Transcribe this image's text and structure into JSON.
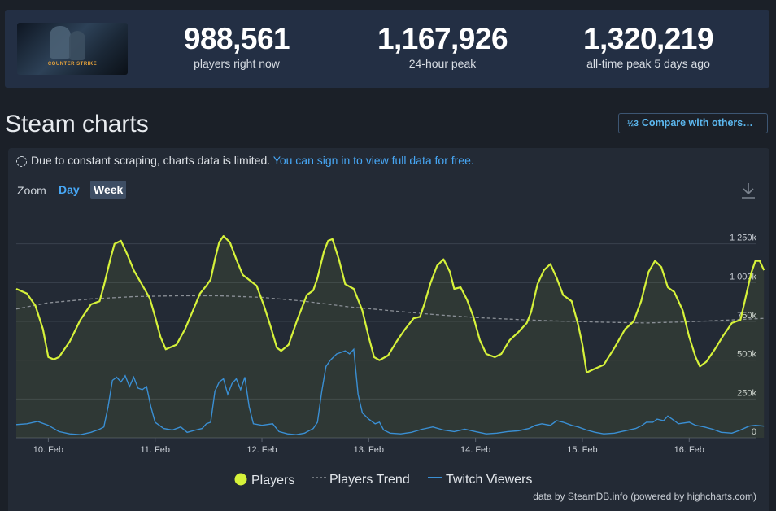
{
  "stats": [
    {
      "value": "988,561",
      "label": "players right now"
    },
    {
      "value": "1,167,926",
      "label": "24-hour peak"
    },
    {
      "value": "1,320,219",
      "label": "all-time peak 5 days ago"
    }
  ],
  "game_logo_text": "COUNTER STRIKE",
  "page_title": "Steam charts",
  "compare_button": {
    "fraction": "½3",
    "label": "Compare with others…"
  },
  "notice": {
    "text": "Due to constant scraping, charts data is limited.",
    "link": "You can sign in to view full data for free."
  },
  "zoom": {
    "label": "Zoom",
    "options": [
      "Day",
      "Week"
    ],
    "selected": "Week"
  },
  "download_icon": "download-icon",
  "legend": {
    "players": "Players",
    "trend": "Players Trend",
    "twitch": "Twitch Viewers"
  },
  "credit": "data by SteamDB.info (powered by highcharts.com)",
  "colors": {
    "players": "#d6f23a",
    "trend": "#8a8f96",
    "twitch": "#3a8fd4",
    "accent": "#47a7f5"
  },
  "chart_data": {
    "type": "line",
    "x_unit": "days since 10. Feb 00:00",
    "x_range": [
      -0.3,
      6.63
    ],
    "x_ticks": [
      {
        "label": "10. Feb",
        "x": 0
      },
      {
        "label": "11. Feb",
        "x": 1
      },
      {
        "label": "12. Feb",
        "x": 2
      },
      {
        "label": "13. Feb",
        "x": 3
      },
      {
        "label": "14. Feb",
        "x": 4
      },
      {
        "label": "15. Feb",
        "x": 5
      },
      {
        "label": "16. Feb",
        "x": 6
      }
    ],
    "y_range": [
      0,
      1500000
    ],
    "y_ticks": [
      {
        "label": "0",
        "v": 0
      },
      {
        "label": "250k",
        "v": 250000
      },
      {
        "label": "500k",
        "v": 500000
      },
      {
        "label": "750k",
        "v": 750000
      },
      {
        "label": "1 000k",
        "v": 1000000
      },
      {
        "label": "1 250k",
        "v": 1250000
      }
    ],
    "series": [
      {
        "name": "Players",
        "points": [
          [
            -0.3,
            960000
          ],
          [
            -0.2,
            930000
          ],
          [
            -0.12,
            850000
          ],
          [
            -0.05,
            700000
          ],
          [
            0.0,
            520000
          ],
          [
            0.05,
            505000
          ],
          [
            0.1,
            520000
          ],
          [
            0.2,
            620000
          ],
          [
            0.3,
            760000
          ],
          [
            0.4,
            860000
          ],
          [
            0.48,
            880000
          ],
          [
            0.52,
            980000
          ],
          [
            0.58,
            1150000
          ],
          [
            0.62,
            1250000
          ],
          [
            0.68,
            1270000
          ],
          [
            0.74,
            1180000
          ],
          [
            0.8,
            1080000
          ],
          [
            0.9,
            960000
          ],
          [
            0.95,
            900000
          ],
          [
            1.0,
            780000
          ],
          [
            1.05,
            650000
          ],
          [
            1.1,
            570000
          ],
          [
            1.2,
            600000
          ],
          [
            1.28,
            700000
          ],
          [
            1.36,
            830000
          ],
          [
            1.42,
            930000
          ],
          [
            1.48,
            980000
          ],
          [
            1.52,
            1020000
          ],
          [
            1.56,
            1150000
          ],
          [
            1.6,
            1260000
          ],
          [
            1.64,
            1300000
          ],
          [
            1.7,
            1260000
          ],
          [
            1.76,
            1150000
          ],
          [
            1.82,
            1050000
          ],
          [
            1.95,
            980000
          ],
          [
            2.02,
            850000
          ],
          [
            2.08,
            720000
          ],
          [
            2.14,
            580000
          ],
          [
            2.18,
            560000
          ],
          [
            2.25,
            600000
          ],
          [
            2.33,
            760000
          ],
          [
            2.42,
            920000
          ],
          [
            2.48,
            950000
          ],
          [
            2.52,
            1030000
          ],
          [
            2.58,
            1200000
          ],
          [
            2.62,
            1270000
          ],
          [
            2.66,
            1280000
          ],
          [
            2.72,
            1150000
          ],
          [
            2.78,
            990000
          ],
          [
            2.86,
            960000
          ],
          [
            2.94,
            820000
          ],
          [
            3.0,
            650000
          ],
          [
            3.05,
            520000
          ],
          [
            3.1,
            500000
          ],
          [
            3.18,
            530000
          ],
          [
            3.26,
            620000
          ],
          [
            3.34,
            700000
          ],
          [
            3.42,
            770000
          ],
          [
            3.48,
            780000
          ],
          [
            3.52,
            860000
          ],
          [
            3.58,
            1000000
          ],
          [
            3.64,
            1110000
          ],
          [
            3.7,
            1150000
          ],
          [
            3.76,
            1070000
          ],
          [
            3.8,
            960000
          ],
          [
            3.86,
            970000
          ],
          [
            3.92,
            890000
          ],
          [
            3.98,
            780000
          ],
          [
            4.04,
            630000
          ],
          [
            4.1,
            540000
          ],
          [
            4.18,
            520000
          ],
          [
            4.24,
            540000
          ],
          [
            4.32,
            630000
          ],
          [
            4.4,
            680000
          ],
          [
            4.48,
            740000
          ],
          [
            4.52,
            810000
          ],
          [
            4.58,
            990000
          ],
          [
            4.64,
            1080000
          ],
          [
            4.7,
            1120000
          ],
          [
            4.76,
            1030000
          ],
          [
            4.82,
            920000
          ],
          [
            4.9,
            880000
          ],
          [
            4.96,
            730000
          ],
          [
            5.0,
            600000
          ],
          [
            5.04,
            420000
          ],
          [
            5.1,
            440000
          ],
          [
            5.2,
            470000
          ],
          [
            5.3,
            580000
          ],
          [
            5.4,
            700000
          ],
          [
            5.48,
            750000
          ],
          [
            5.55,
            880000
          ],
          [
            5.62,
            1070000
          ],
          [
            5.68,
            1140000
          ],
          [
            5.74,
            1100000
          ],
          [
            5.8,
            970000
          ],
          [
            5.86,
            940000
          ],
          [
            5.94,
            820000
          ],
          [
            6.0,
            650000
          ],
          [
            6.06,
            520000
          ],
          [
            6.1,
            460000
          ],
          [
            6.16,
            490000
          ],
          [
            6.24,
            570000
          ],
          [
            6.32,
            660000
          ],
          [
            6.4,
            740000
          ],
          [
            6.48,
            760000
          ],
          [
            6.52,
            880000
          ],
          [
            6.58,
            1060000
          ],
          [
            6.62,
            1140000
          ],
          [
            6.66,
            1140000
          ],
          [
            6.7,
            1080000
          ]
        ]
      },
      {
        "name": "Players Trend",
        "dashed": true,
        "points": [
          [
            -0.3,
            830000
          ],
          [
            0.0,
            870000
          ],
          [
            0.4,
            895000
          ],
          [
            0.8,
            910000
          ],
          [
            1.2,
            915000
          ],
          [
            1.6,
            915000
          ],
          [
            2.0,
            905000
          ],
          [
            2.4,
            880000
          ],
          [
            2.8,
            845000
          ],
          [
            3.2,
            820000
          ],
          [
            3.6,
            795000
          ],
          [
            4.0,
            775000
          ],
          [
            4.4,
            762000
          ],
          [
            4.8,
            752000
          ],
          [
            5.2,
            745000
          ],
          [
            5.6,
            740000
          ],
          [
            6.0,
            748000
          ],
          [
            6.4,
            760000
          ],
          [
            6.7,
            770000
          ]
        ]
      },
      {
        "name": "Twitch Viewers",
        "points": [
          [
            -0.3,
            85000
          ],
          [
            -0.2,
            90000
          ],
          [
            -0.1,
            105000
          ],
          [
            0.0,
            80000
          ],
          [
            0.1,
            40000
          ],
          [
            0.2,
            25000
          ],
          [
            0.3,
            20000
          ],
          [
            0.4,
            35000
          ],
          [
            0.48,
            55000
          ],
          [
            0.52,
            70000
          ],
          [
            0.56,
            200000
          ],
          [
            0.6,
            370000
          ],
          [
            0.64,
            390000
          ],
          [
            0.68,
            360000
          ],
          [
            0.72,
            400000
          ],
          [
            0.76,
            330000
          ],
          [
            0.8,
            390000
          ],
          [
            0.84,
            320000
          ],
          [
            0.88,
            310000
          ],
          [
            0.92,
            330000
          ],
          [
            0.96,
            200000
          ],
          [
            1.0,
            100000
          ],
          [
            1.08,
            60000
          ],
          [
            1.16,
            50000
          ],
          [
            1.24,
            70000
          ],
          [
            1.3,
            35000
          ],
          [
            1.38,
            50000
          ],
          [
            1.44,
            60000
          ],
          [
            1.48,
            90000
          ],
          [
            1.52,
            100000
          ],
          [
            1.56,
            300000
          ],
          [
            1.6,
            360000
          ],
          [
            1.64,
            380000
          ],
          [
            1.68,
            280000
          ],
          [
            1.72,
            350000
          ],
          [
            1.76,
            380000
          ],
          [
            1.8,
            310000
          ],
          [
            1.84,
            390000
          ],
          [
            1.88,
            200000
          ],
          [
            1.92,
            90000
          ],
          [
            2.0,
            80000
          ],
          [
            2.1,
            90000
          ],
          [
            2.16,
            40000
          ],
          [
            2.24,
            25000
          ],
          [
            2.32,
            20000
          ],
          [
            2.4,
            30000
          ],
          [
            2.48,
            60000
          ],
          [
            2.52,
            100000
          ],
          [
            2.56,
            300000
          ],
          [
            2.6,
            460000
          ],
          [
            2.64,
            500000
          ],
          [
            2.7,
            540000
          ],
          [
            2.74,
            550000
          ],
          [
            2.78,
            560000
          ],
          [
            2.82,
            540000
          ],
          [
            2.86,
            570000
          ],
          [
            2.9,
            280000
          ],
          [
            2.94,
            160000
          ],
          [
            3.0,
            120000
          ],
          [
            3.06,
            90000
          ],
          [
            3.1,
            100000
          ],
          [
            3.14,
            50000
          ],
          [
            3.2,
            30000
          ],
          [
            3.3,
            25000
          ],
          [
            3.4,
            35000
          ],
          [
            3.5,
            55000
          ],
          [
            3.6,
            70000
          ],
          [
            3.7,
            50000
          ],
          [
            3.8,
            40000
          ],
          [
            3.9,
            55000
          ],
          [
            4.0,
            40000
          ],
          [
            4.1,
            25000
          ],
          [
            4.2,
            30000
          ],
          [
            4.3,
            40000
          ],
          [
            4.4,
            45000
          ],
          [
            4.5,
            60000
          ],
          [
            4.56,
            80000
          ],
          [
            4.62,
            90000
          ],
          [
            4.7,
            80000
          ],
          [
            4.76,
            110000
          ],
          [
            4.82,
            100000
          ],
          [
            4.9,
            80000
          ],
          [
            4.96,
            70000
          ],
          [
            5.04,
            50000
          ],
          [
            5.12,
            35000
          ],
          [
            5.2,
            25000
          ],
          [
            5.3,
            30000
          ],
          [
            5.4,
            45000
          ],
          [
            5.5,
            60000
          ],
          [
            5.56,
            80000
          ],
          [
            5.6,
            100000
          ],
          [
            5.66,
            100000
          ],
          [
            5.7,
            120000
          ],
          [
            5.76,
            110000
          ],
          [
            5.8,
            140000
          ],
          [
            5.84,
            120000
          ],
          [
            5.9,
            90000
          ],
          [
            6.0,
            100000
          ],
          [
            6.06,
            80000
          ],
          [
            6.14,
            70000
          ],
          [
            6.22,
            55000
          ],
          [
            6.3,
            35000
          ],
          [
            6.4,
            30000
          ],
          [
            6.48,
            50000
          ],
          [
            6.56,
            75000
          ],
          [
            6.62,
            80000
          ],
          [
            6.7,
            75000
          ]
        ]
      }
    ]
  }
}
